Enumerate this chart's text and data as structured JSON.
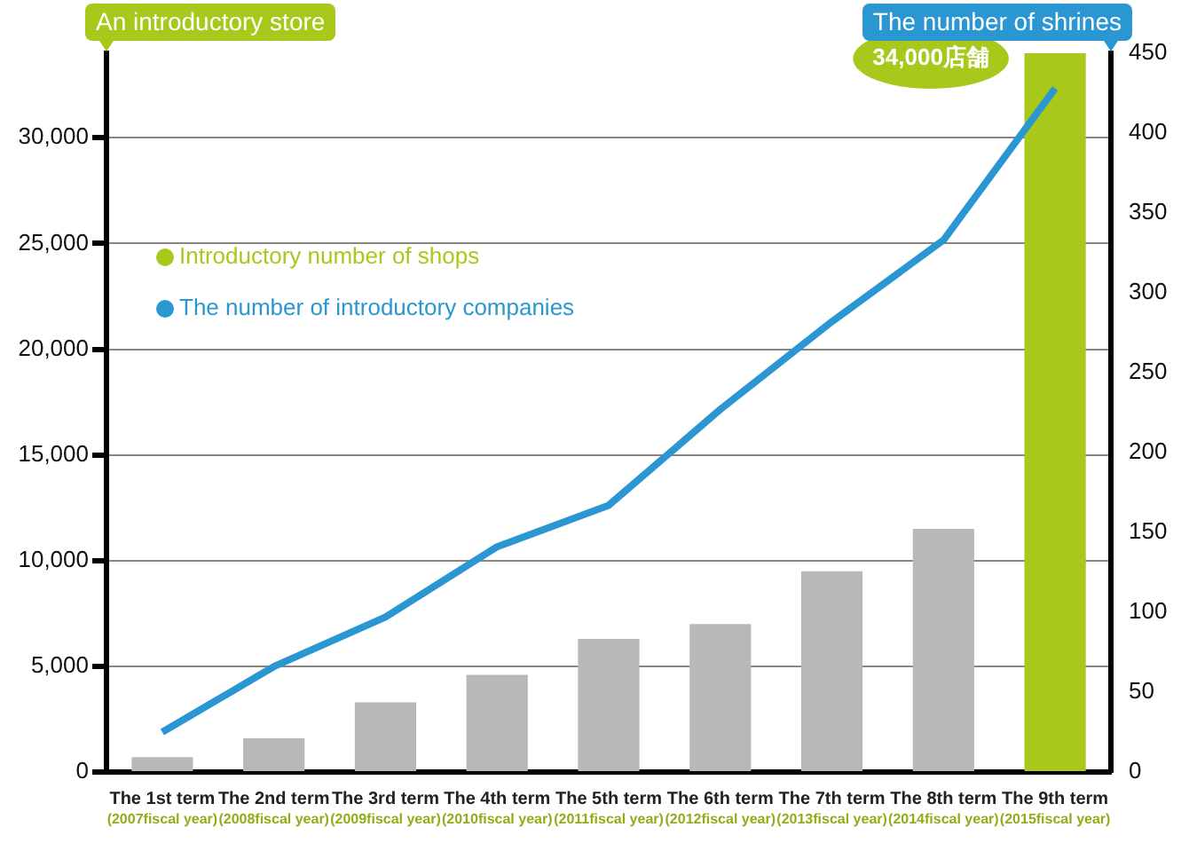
{
  "chart_data": {
    "type": "bar",
    "categories": [
      "The 1st term\n(2007fiscal year)",
      "The 2nd term\n(2008fiscal year)",
      "The 3rd term\n(2009fiscal year)",
      "The 4th term\n(2010fiscal year)",
      "The 5th term\n(2011fiscal year)",
      "The 6th term\n(2012fiscal year)",
      "The 7th term\n(2013fiscal year)",
      "The 8th term\n(2014fiscal year)",
      "The 9th term\n(2015fiscal year)"
    ],
    "ylabel": "An introductory store",
    "y2label": "The number of shrines",
    "series": [
      {
        "name": "Introductory number of shops",
        "color": "#a8c81c",
        "colors": [
          "#b8b8b8",
          "#b8b8b8",
          "#b8b8b8",
          "#b8b8b8",
          "#b8b8b8",
          "#b8b8b8",
          "#b8b8b8",
          "#b8b8b8",
          "#a8c81c"
        ],
        "values": [
          700,
          1600,
          3300,
          4600,
          6300,
          7000,
          9500,
          11500,
          34000
        ],
        "value_labels": [
          null,
          null,
          null,
          null,
          null,
          null,
          null,
          null,
          "34,000店舗"
        ]
      },
      {
        "name": "The number of introductory companies",
        "type": "line",
        "axis": "y2",
        "color": "#2a96d2",
        "values": [
          25,
          66,
          97,
          141,
          167,
          227,
          282,
          333,
          428
        ]
      }
    ],
    "ylim": [
      0,
      34000
    ],
    "yticks": [
      0,
      {
        "value": 5000,
        "label": "5,000"
      },
      {
        "value": 10000,
        "label": "10,000"
      },
      {
        "value": 15000,
        "label": "15,000"
      },
      {
        "value": 20000,
        "label": "20,000"
      },
      {
        "value": 25000,
        "label": "25,000"
      },
      {
        "value": 30000,
        "label": "30,000"
      }
    ],
    "y2lim": [
      0,
      450
    ],
    "y2ticks": [
      0,
      50,
      100,
      150,
      200,
      250,
      300,
      350,
      400,
      450
    ],
    "grid": "y",
    "legend": "top left",
    "marker": "none",
    "line_style": "solid"
  }
}
